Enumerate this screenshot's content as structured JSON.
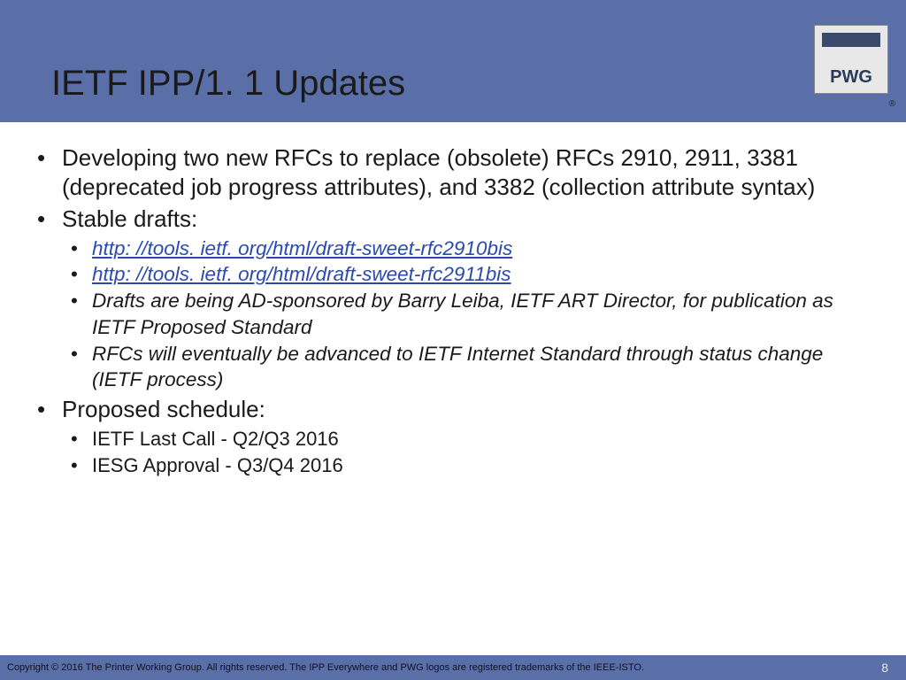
{
  "header": {
    "title": "IETF IPP/1. 1 Updates",
    "logo_text": "PWG",
    "registered": "®"
  },
  "bullets": {
    "b1": "Developing two new RFCs to replace (obsolete) RFCs 2910, 2911, 3381 (deprecated job progress attributes), and 3382 (collection attribute syntax)",
    "b2": "Stable drafts:",
    "b2_sub": {
      "link1": "http: //tools. ietf. org/html/draft-sweet-rfc2910bis",
      "link2": "http: //tools. ietf. org/html/draft-sweet-rfc2911bis",
      "s3": "Drafts are being AD-sponsored by Barry Leiba, IETF ART Director, for publication as IETF Proposed Standard",
      "s4": "RFCs will eventually be advanced to IETF Internet Standard through status change (IETF process)"
    },
    "b3": "Proposed schedule:",
    "b3_sub": {
      "s1": "IETF Last Call - Q2/Q3 2016",
      "s2": "IESG Approval - Q3/Q4 2016"
    }
  },
  "footer": {
    "copyright": "Copyright © 2016 The Printer Working Group. All rights reserved. The IPP Everywhere and PWG logos are registered trademarks of the IEEE-ISTO.",
    "page": "8"
  },
  "colors": {
    "header_bg": "#5a6fa8",
    "text": "#1a1a1a",
    "link": "#2a4ab0",
    "footer_text": "#101020",
    "pagenum": "#e8e8f0"
  }
}
